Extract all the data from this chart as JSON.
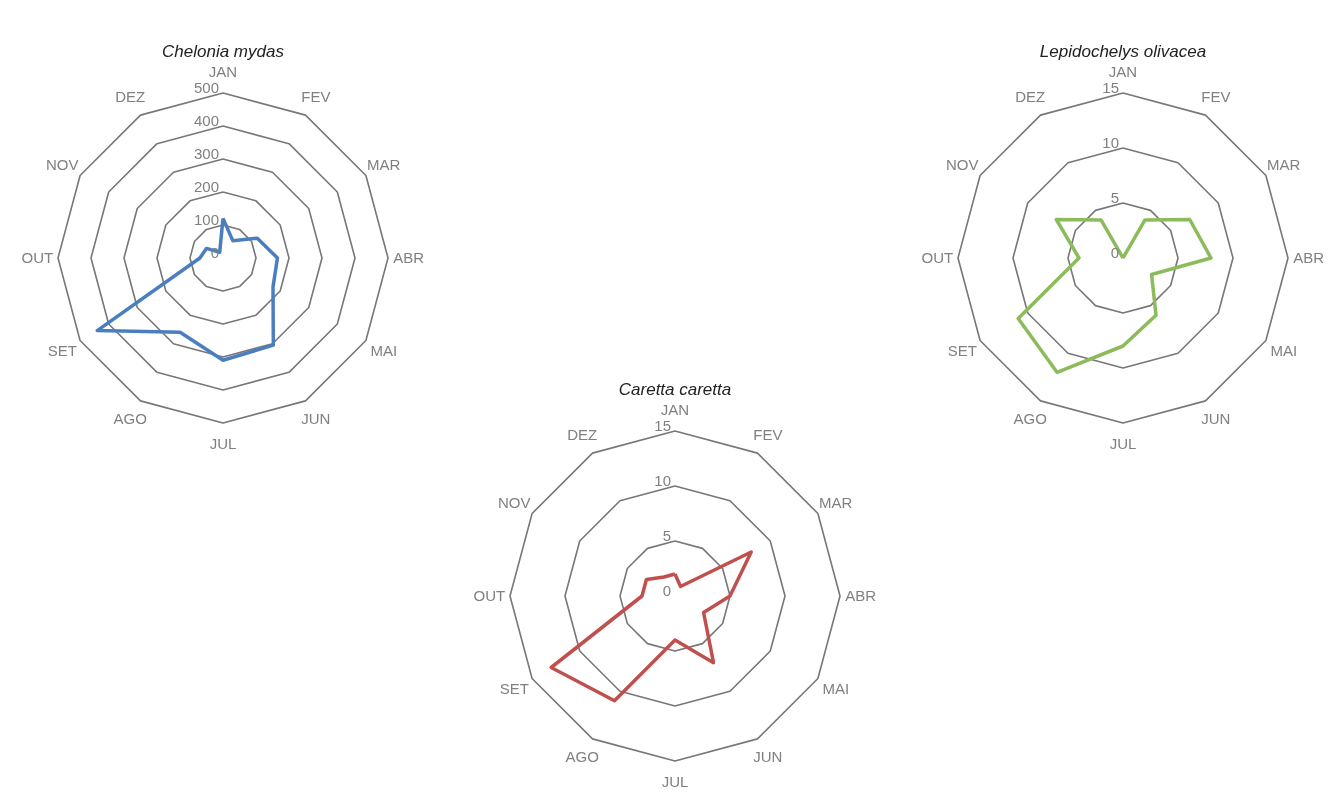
{
  "chart_data": [
    {
      "type": "radar",
      "title": "Chelonia mydas",
      "categories": [
        "JAN",
        "FEV",
        "MAR",
        "ABR",
        "MAI",
        "JUN",
        "JUL",
        "AGO",
        "SET",
        "OUT",
        "NOV",
        "DEZ"
      ],
      "ylim": [
        0,
        500
      ],
      "yticks": [
        0,
        100,
        200,
        300,
        400,
        500
      ],
      "grid": true,
      "series": [
        {
          "color": "#4a7ebf",
          "values": [
            120,
            60,
            120,
            165,
            175,
            305,
            310,
            260,
            440,
            70,
            58,
            20
          ]
        }
      ]
    },
    {
      "type": "radar",
      "title": "Lepidochelys olivacea",
      "categories": [
        "JAN",
        "FEV",
        "MAR",
        "ABR",
        "MAI",
        "JUN",
        "JUL",
        "AGO",
        "SET",
        "OUT",
        "NOV",
        "DEZ"
      ],
      "ylim": [
        0,
        15
      ],
      "yticks": [
        0,
        5,
        10,
        15
      ],
      "grid": true,
      "series": [
        {
          "color": "#8cbb5c",
          "values": [
            0,
            4,
            7,
            8,
            3,
            6,
            8,
            12,
            11,
            4,
            7,
            4
          ]
        }
      ]
    },
    {
      "type": "radar",
      "title": "Caretta caretta",
      "categories": [
        "JAN",
        "FEV",
        "MAR",
        "ABR",
        "MAI",
        "JUN",
        "JUL",
        "AGO",
        "SET",
        "OUT",
        "NOV",
        "DEZ"
      ],
      "ylim": [
        0,
        15
      ],
      "yticks": [
        0,
        5,
        10,
        15
      ],
      "grid": true,
      "series": [
        {
          "color": "#c0504d",
          "values": [
            2,
            1,
            8,
            5,
            3,
            7,
            4,
            11,
            13,
            3,
            3,
            2
          ]
        }
      ]
    }
  ]
}
